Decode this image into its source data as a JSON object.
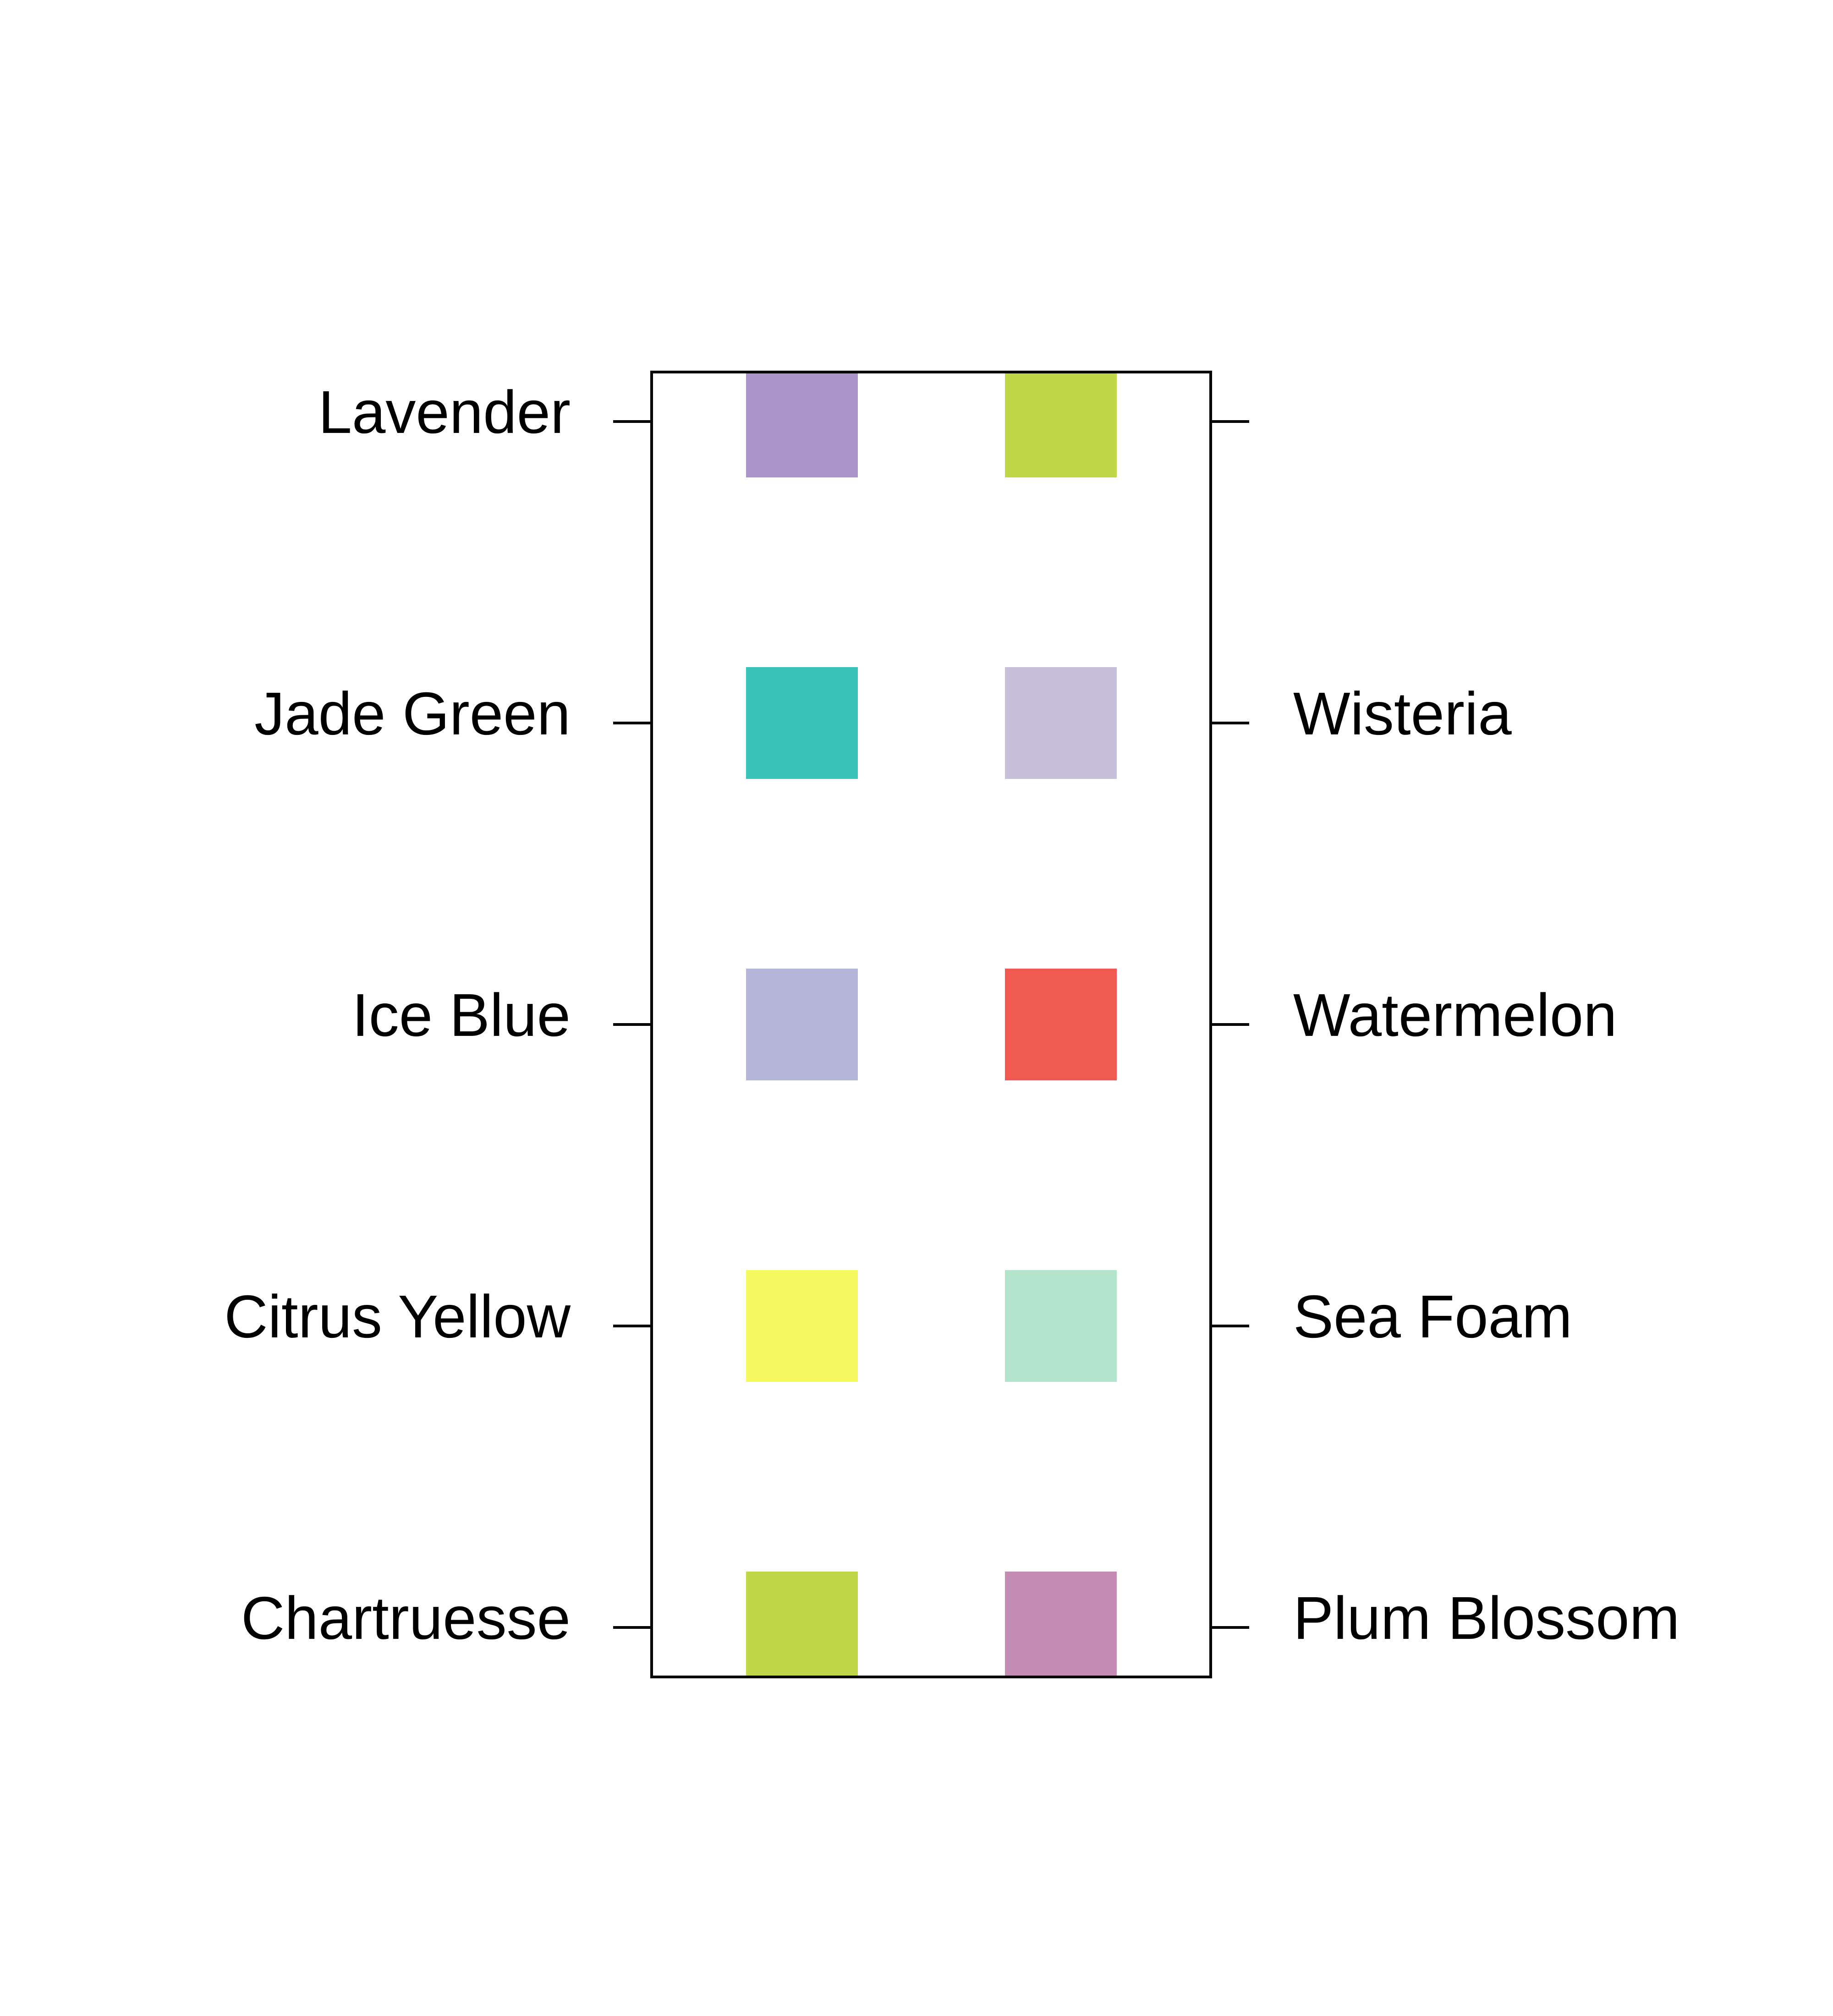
{
  "chart_data": {
    "type": "table",
    "title": "",
    "xlabel": "",
    "ylabel": "",
    "rows": 5,
    "columns": 2,
    "left_labels": [
      "Lavender",
      "Jade Green",
      "Ice Blue",
      "Citrus Yellow",
      "Chartruesse"
    ],
    "right_labels": [
      "",
      "Wisteria",
      "Watermelon",
      "Sea Foam",
      "Plum Blossom"
    ],
    "cells": [
      [
        {
          "color": "#AA93C8"
        },
        {
          "color": "#C0D848"
        }
      ],
      [
        {
          "color": "#38C4B9"
        },
        {
          "color": "#C8BFDA"
        }
      ],
      [
        {
          "color": "#B4B5D9"
        },
        {
          "color": "#F05A52"
        }
      ],
      [
        {
          "color": "#F5FA60"
        },
        {
          "color": "#B4E4CC"
        }
      ],
      [
        {
          "color": "#C0D848"
        },
        {
          "color": "#C38CB4"
        }
      ]
    ],
    "grid": false,
    "frame": true
  },
  "colors": {
    "background": "#FFFFFF",
    "frame": "#000000",
    "text": "#000000"
  }
}
